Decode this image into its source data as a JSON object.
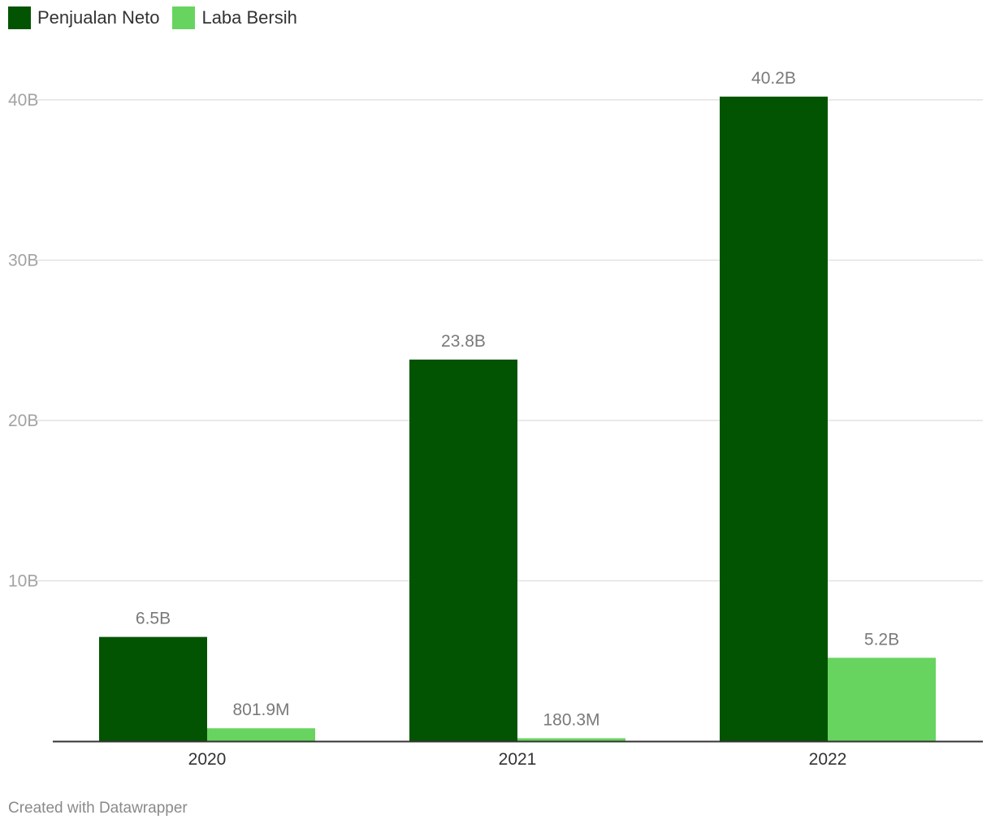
{
  "chart_data": {
    "type": "bar",
    "categories": [
      "2020",
      "2021",
      "2022"
    ],
    "series": [
      {
        "name": "Penjualan Neto",
        "color": "#025402",
        "values": [
          6500000000,
          23800000000,
          40200000000
        ],
        "labels": [
          "6.5B",
          "23.8B",
          "40.2B"
        ]
      },
      {
        "name": "Laba Bersih",
        "color": "#67d45f",
        "values": [
          801900000,
          180300000,
          5200000000
        ],
        "labels": [
          "801.9M",
          "180.3M",
          "5.2B"
        ]
      }
    ],
    "ylim": [
      0,
      40000000000
    ],
    "yticks": [
      {
        "value": 10000000000,
        "label": "10B"
      },
      {
        "value": 20000000000,
        "label": "20B"
      },
      {
        "value": 30000000000,
        "label": "30B"
      },
      {
        "value": 40000000000,
        "label": "40B"
      }
    ],
    "grid": true,
    "legend_position": "top-left"
  },
  "footer": {
    "credit": "Created with Datawrapper"
  }
}
